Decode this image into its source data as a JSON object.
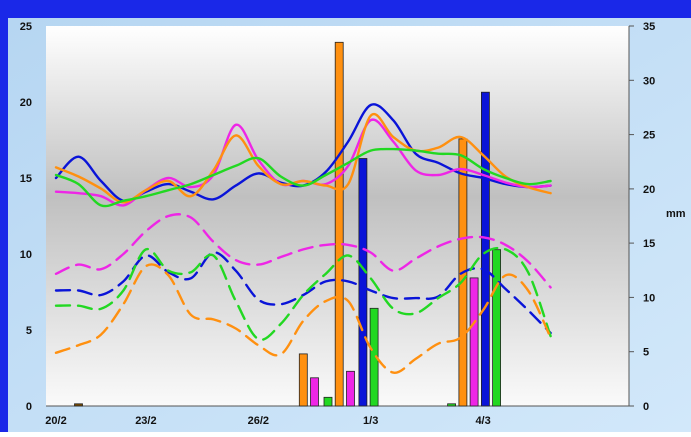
{
  "chart_data": {
    "type": "line",
    "title": "",
    "x_ticks": [
      "20/2",
      "23/2",
      "26/2",
      "1/3",
      "4/3"
    ],
    "y_left": {
      "range": [
        0,
        25
      ],
      "ticks": [
        "0",
        "5",
        "10",
        "15",
        "20",
        "25"
      ]
    },
    "y_right": {
      "range": [
        0,
        35
      ],
      "ticks": [
        "0",
        "5",
        "10",
        "15",
        "20",
        "25",
        "30",
        "35"
      ],
      "label": "mm"
    },
    "grid": false,
    "x": [
      0,
      1,
      2,
      3,
      4,
      5,
      6,
      7,
      8,
      9,
      10,
      11,
      12,
      13,
      14,
      15,
      16,
      17,
      18,
      19,
      20,
      21,
      22,
      23,
      24,
      25
    ],
    "series": [
      {
        "style": "solid",
        "color": "#0a14d8",
        "axis": "left",
        "values": [
          15.0,
          16.4,
          14.8,
          13.5,
          14.1,
          14.6,
          14.1,
          13.6,
          14.5,
          15.3,
          14.7,
          14.5,
          15.4,
          17.4,
          19.8,
          18.8,
          16.6,
          16.0,
          15.3,
          15.0,
          14.6,
          14.4,
          14.5,
          14.6,
          14.6,
          14.6
        ]
      },
      {
        "style": "solid",
        "color": "#ee26e6",
        "axis": "left",
        "values": [
          14.1,
          14.0,
          13.8,
          13.2,
          14.2,
          15.0,
          14.4,
          15.2,
          18.5,
          16.2,
          14.6,
          14.8,
          14.6,
          15.8,
          18.8,
          17.4,
          15.5,
          15.2,
          15.6,
          15.2,
          14.7,
          14.4,
          14.5,
          14.7,
          14.6,
          14.6
        ]
      },
      {
        "style": "solid",
        "color": "#ff9010",
        "axis": "left",
        "values": [
          15.7,
          15.1,
          14.3,
          13.4,
          14.2,
          14.8,
          13.8,
          15.5,
          17.8,
          15.8,
          14.6,
          14.8,
          14.5,
          14.6,
          19.1,
          17.7,
          16.8,
          17.0,
          17.7,
          16.5,
          15.1,
          14.4,
          14.0,
          14.0,
          14.0,
          14.0
        ]
      },
      {
        "style": "solid",
        "color": "#22d822",
        "axis": "left",
        "values": [
          15.2,
          14.6,
          13.2,
          13.5,
          13.8,
          14.2,
          14.6,
          15.2,
          15.8,
          16.3,
          15.1,
          14.5,
          15.2,
          16.0,
          16.8,
          16.9,
          16.8,
          16.6,
          16.5,
          15.6,
          15.0,
          14.6,
          14.8,
          15.3,
          15.3,
          15.3
        ]
      },
      {
        "style": "dashed",
        "color": "#ee26e6",
        "axis": "left",
        "values": [
          8.7,
          9.3,
          9.0,
          10.0,
          11.5,
          12.5,
          12.4,
          10.8,
          9.6,
          9.3,
          9.8,
          10.3,
          10.6,
          10.6,
          10.1,
          8.9,
          9.7,
          10.5,
          11.0,
          11.1,
          10.6,
          9.5,
          7.8,
          7.8,
          7.8,
          7.8
        ]
      },
      {
        "style": "dashed",
        "color": "#0a14d8",
        "axis": "left",
        "values": [
          7.6,
          7.6,
          7.3,
          8.2,
          9.9,
          8.8,
          8.4,
          10.1,
          8.9,
          7.0,
          6.7,
          7.3,
          8.2,
          8.2,
          7.6,
          7.1,
          7.1,
          7.2,
          8.7,
          9.0,
          7.7,
          6.3,
          4.8,
          4.8,
          4.8,
          4.8
        ]
      },
      {
        "style": "dashed",
        "color": "#22d822",
        "axis": "left",
        "values": [
          6.6,
          6.6,
          6.4,
          7.6,
          10.3,
          8.9,
          8.8,
          9.9,
          6.9,
          4.4,
          5.4,
          7.3,
          8.7,
          9.9,
          8.4,
          6.4,
          6.1,
          7.1,
          8.1,
          10.0,
          10.3,
          8.8,
          4.6,
          4.6,
          4.6,
          4.6
        ]
      },
      {
        "style": "dashed",
        "color": "#ff9010",
        "axis": "left",
        "values": [
          3.5,
          4.0,
          4.7,
          6.7,
          9.2,
          8.6,
          6.0,
          5.7,
          5.1,
          4.0,
          3.4,
          5.6,
          6.9,
          6.9,
          3.8,
          2.2,
          3.1,
          4.1,
          4.5,
          6.3,
          8.6,
          7.6,
          4.5,
          4.5,
          4.5,
          4.5
        ]
      }
    ],
    "bars": [
      {
        "color": "#7a4a00",
        "x": 1,
        "value": 0.2,
        "axis": "right"
      },
      {
        "color": "#ff9010",
        "x": 11.0,
        "value": 4.8,
        "axis": "right"
      },
      {
        "color": "#ee26e6",
        "x": 11.5,
        "value": 2.6,
        "axis": "right"
      },
      {
        "color": "#22d822",
        "x": 12.1,
        "value": 0.8,
        "axis": "right"
      },
      {
        "color": "#ff9010",
        "x": 12.6,
        "value": 33.5,
        "axis": "right"
      },
      {
        "color": "#ee26e6",
        "x": 13.1,
        "value": 3.2,
        "axis": "right"
      },
      {
        "color": "#0a14d8",
        "x": 13.65,
        "value": 22.8,
        "axis": "right"
      },
      {
        "color": "#22d822",
        "x": 14.15,
        "value": 9.0,
        "axis": "right"
      },
      {
        "color": "#22d822",
        "x": 17.6,
        "value": 0.2,
        "axis": "right"
      },
      {
        "color": "#ff9010",
        "x": 18.1,
        "value": 24.6,
        "axis": "right"
      },
      {
        "color": "#ee26e6",
        "x": 18.6,
        "value": 11.8,
        "axis": "right"
      },
      {
        "color": "#0a14d8",
        "x": 19.1,
        "value": 28.9,
        "axis": "right"
      },
      {
        "color": "#22d822",
        "x": 19.6,
        "value": 14.4,
        "axis": "right"
      }
    ],
    "xlabel": "",
    "ylabel": "",
    "x_tick_positions": [
      0,
      4,
      9,
      14,
      19
    ],
    "x_range": [
      0,
      25
    ]
  },
  "colors": {
    "frame": "#1a28e8",
    "outer_background": "#c4dff6",
    "panel_edge": "#ffffff"
  }
}
